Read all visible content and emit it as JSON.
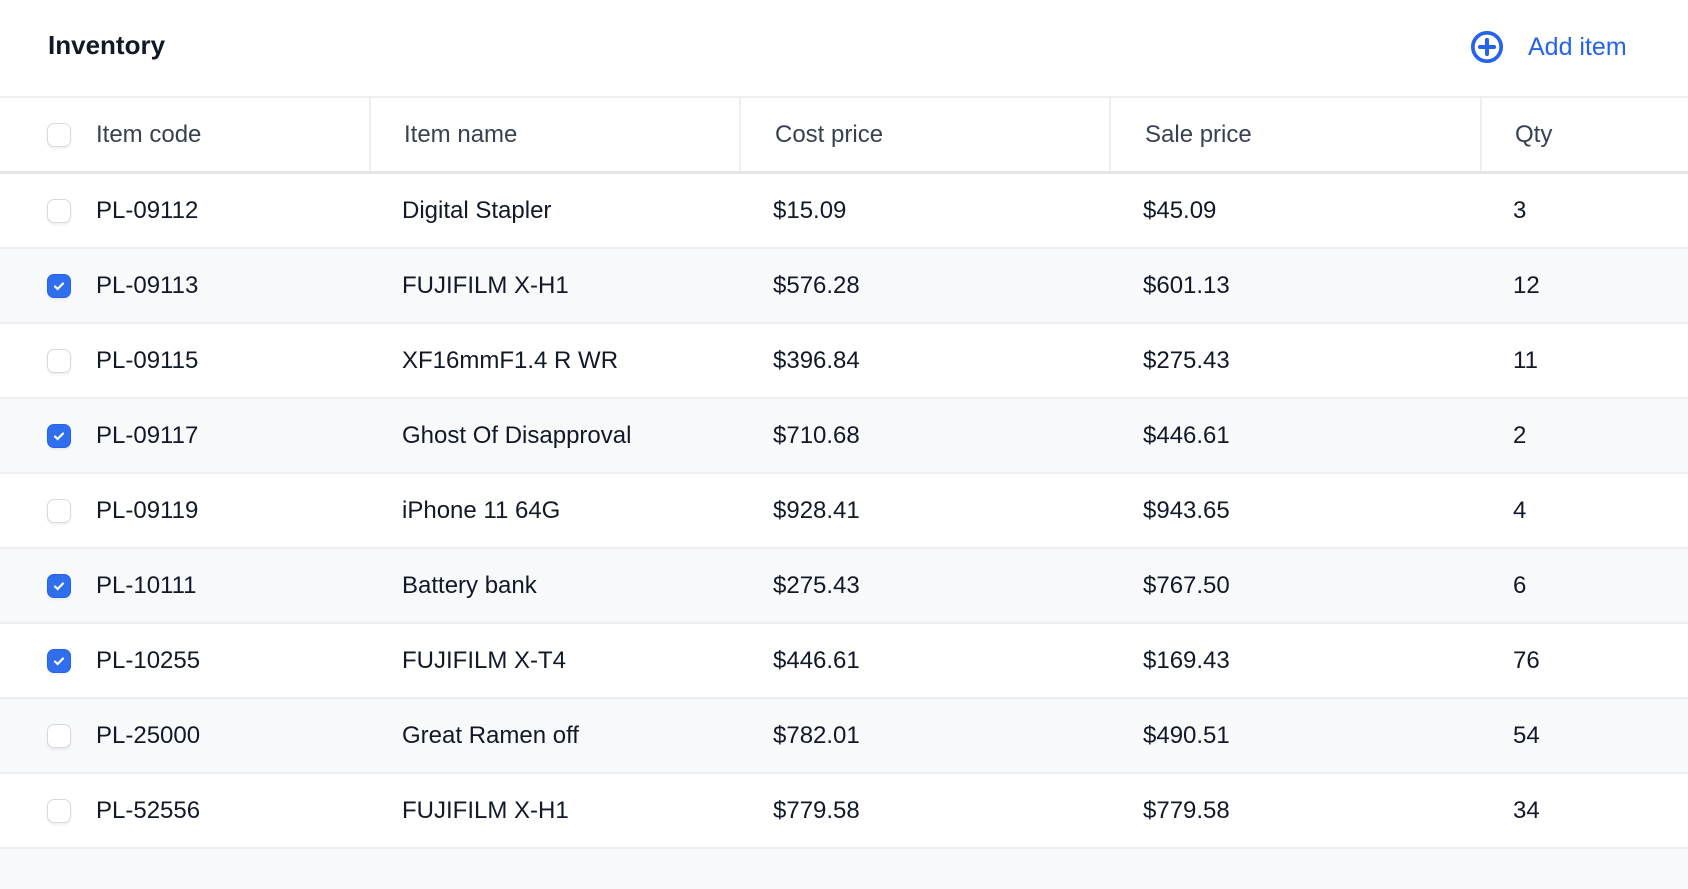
{
  "header": {
    "title": "Inventory",
    "add_label": "Add item",
    "add_icon": "plus-circle-icon"
  },
  "colors": {
    "accent": "#2563eb",
    "stripe": "#f8f9fb"
  },
  "columns": [
    "Item code",
    "Item name",
    "Cost price",
    "Sale price",
    "Qty"
  ],
  "rows": [
    {
      "checked": false,
      "code": "PL-09112",
      "name": "Digital Stapler",
      "cost": "$15.09",
      "sale": "$45.09",
      "qty": "3"
    },
    {
      "checked": true,
      "code": "PL-09113",
      "name": "FUJIFILM X-H1",
      "cost": "$576.28",
      "sale": "$601.13",
      "qty": "12"
    },
    {
      "checked": false,
      "code": "PL-09115",
      "name": "XF16mmF1.4 R WR",
      "cost": "$396.84",
      "sale": "$275.43",
      "qty": "11"
    },
    {
      "checked": true,
      "code": "PL-09117",
      "name": "Ghost Of Disapproval",
      "cost": "$710.68",
      "sale": "$446.61",
      "qty": "2"
    },
    {
      "checked": false,
      "code": "PL-09119",
      "name": "iPhone 11 64G",
      "cost": "$928.41",
      "sale": "$943.65",
      "qty": "4"
    },
    {
      "checked": true,
      "code": "PL-10111",
      "name": "Battery bank",
      "cost": "$275.43",
      "sale": "$767.50",
      "qty": "6"
    },
    {
      "checked": true,
      "code": "PL-10255",
      "name": "FUJIFILM X-T4",
      "cost": "$446.61",
      "sale": "$169.43",
      "qty": "76"
    },
    {
      "checked": false,
      "code": "PL-25000",
      "name": "Great Ramen off",
      "cost": "$782.01",
      "sale": "$490.51",
      "qty": "54"
    },
    {
      "checked": false,
      "code": "PL-52556",
      "name": "FUJIFILM X-H1",
      "cost": "$779.58",
      "sale": "$779.58",
      "qty": "34"
    }
  ]
}
